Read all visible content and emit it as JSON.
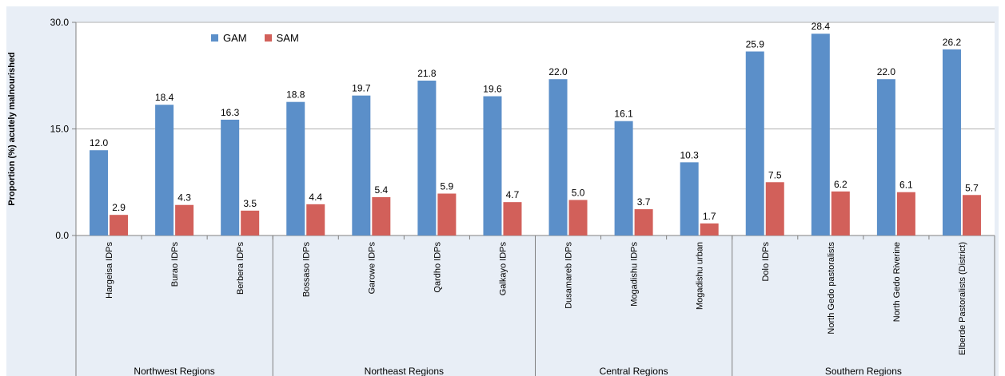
{
  "chart_data": {
    "type": "bar",
    "ylabel": "Proportion (%) acutely malnourished",
    "ylim": [
      0,
      30
    ],
    "yticks": [
      "0.0",
      "15.0",
      "30.0"
    ],
    "grid": true,
    "legend_position": "top-left",
    "categories": [
      "Hargeisa IDPs",
      "Burao IDPs",
      "Berbera IDPs",
      "Bossaso IDPs",
      "Garowe IDPs",
      "Qardho IDPs",
      "Galkayo IDPs",
      "Dusamareb IDPs",
      "Mogadishu IDPs",
      "Mogadishu urban",
      "Dolo IDPs",
      "North Gedo pastoralists",
      "North Gedo Riverine",
      "Elberde Pastoralists (District)"
    ],
    "groups": [
      {
        "label": "Northwest Regions",
        "count": 3
      },
      {
        "label": "Northeast Regions",
        "count": 4
      },
      {
        "label": "Central Regions",
        "count": 3
      },
      {
        "label": "Southern Regions",
        "count": 4
      }
    ],
    "series": [
      {
        "name": "GAM",
        "color": "#5b8fc9",
        "values": [
          12.0,
          18.4,
          16.3,
          18.8,
          19.7,
          21.8,
          19.6,
          22.0,
          16.1,
          10.3,
          25.9,
          28.4,
          22.0,
          26.2
        ]
      },
      {
        "name": "SAM",
        "color": "#d2605a",
        "values": [
          2.9,
          4.3,
          3.5,
          4.4,
          5.4,
          5.9,
          4.7,
          5.0,
          3.7,
          1.7,
          7.5,
          6.2,
          6.1,
          5.7
        ]
      }
    ]
  }
}
